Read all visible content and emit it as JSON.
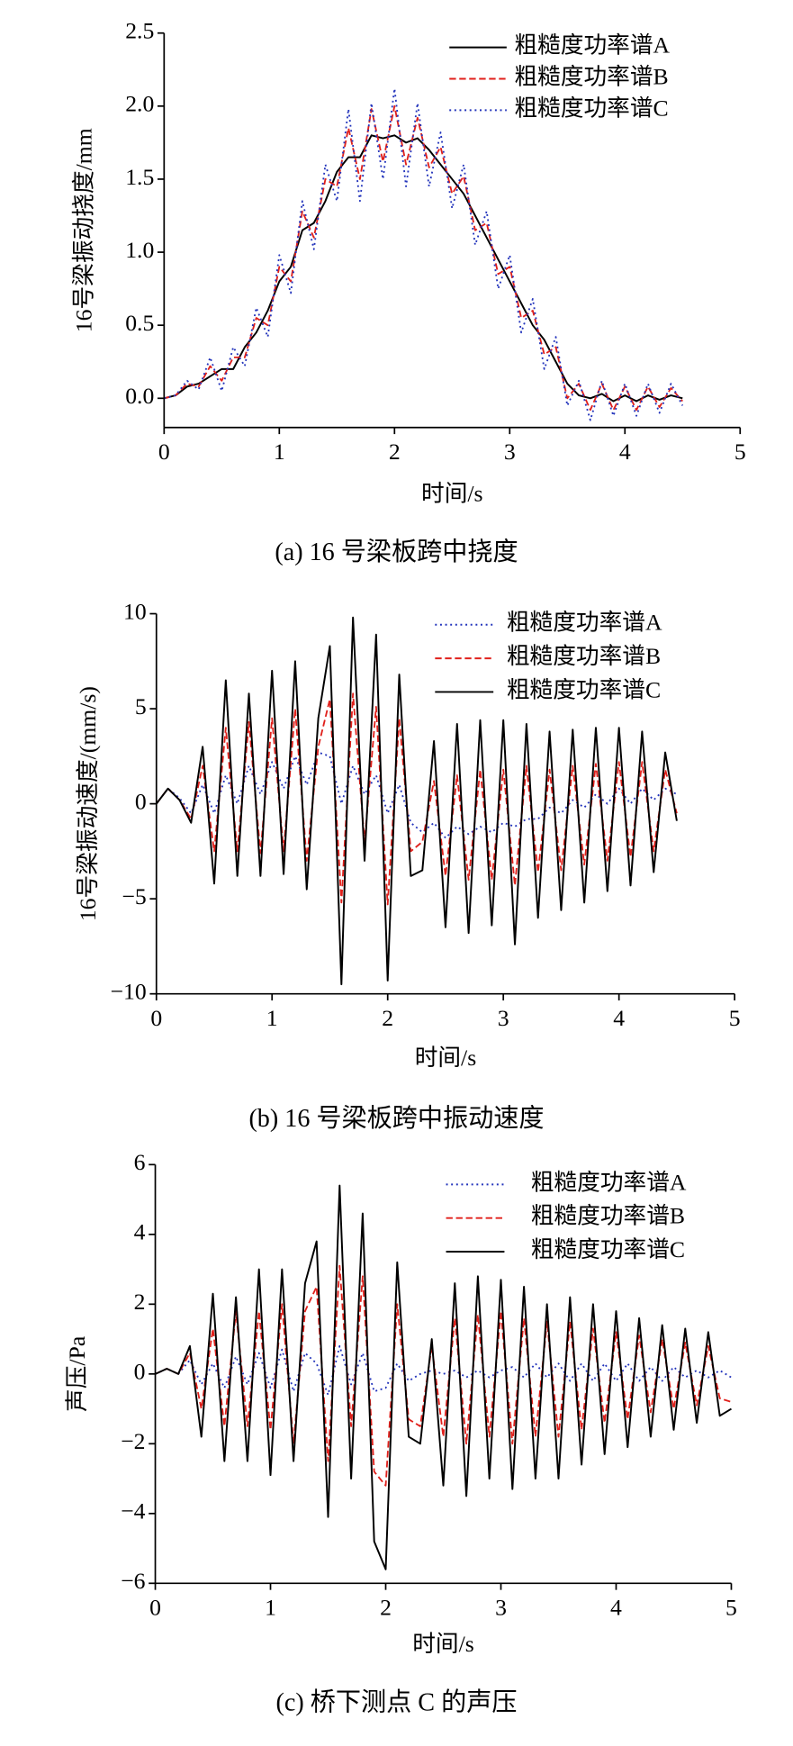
{
  "chart_data": [
    {
      "type": "line",
      "title": "(a) 16 号梁板跨中挠度",
      "x_label": "时间/s",
      "y_label": "16号梁振动挠度/mm",
      "x": [
        0,
        0.1,
        0.2,
        0.3,
        0.4,
        0.5,
        0.6,
        0.7,
        0.8,
        0.9,
        1,
        1.1,
        1.2,
        1.3,
        1.4,
        1.5,
        1.6,
        1.7,
        1.8,
        1.9,
        2,
        2.1,
        2.2,
        2.3,
        2.4,
        2.5,
        2.6,
        2.7,
        2.8,
        2.9,
        3,
        3.1,
        3.2,
        3.3,
        3.4,
        3.5,
        3.6,
        3.7,
        3.8,
        3.9,
        4,
        4.1,
        4.2,
        4.3,
        4.4,
        4.5
      ],
      "series": [
        {
          "name": "粗糙度功率谱A",
          "color": "#000000",
          "style": "solid",
          "values": [
            0,
            0.02,
            0.08,
            0.1,
            0.15,
            0.2,
            0.2,
            0.35,
            0.45,
            0.6,
            0.8,
            0.9,
            1.15,
            1.2,
            1.35,
            1.55,
            1.65,
            1.65,
            1.8,
            1.78,
            1.8,
            1.75,
            1.78,
            1.7,
            1.6,
            1.5,
            1.4,
            1.25,
            1.1,
            0.95,
            0.8,
            0.65,
            0.5,
            0.4,
            0.25,
            0.1,
            0.02,
            0,
            0.03,
            -0.02,
            0.02,
            -0.02,
            0.02,
            -0.01,
            0.02,
            0
          ]
        },
        {
          "name": "粗糙度功率谱B",
          "color": "#e0201b",
          "style": "dashed",
          "values": [
            0,
            0.02,
            0.1,
            0.08,
            0.22,
            0.12,
            0.28,
            0.28,
            0.55,
            0.5,
            0.9,
            0.8,
            1.28,
            1.1,
            1.5,
            1.45,
            1.85,
            1.5,
            1.98,
            1.62,
            2.0,
            1.6,
            1.92,
            1.58,
            1.72,
            1.4,
            1.52,
            1.15,
            1.2,
            0.85,
            0.9,
            0.55,
            0.6,
            0.3,
            0.35,
            0,
            0.1,
            -0.08,
            0.1,
            -0.08,
            0.08,
            -0.08,
            0.08,
            -0.06,
            0.07,
            -0.02
          ]
        },
        {
          "name": "粗糙度功率谱C",
          "color": "#2233bb",
          "style": "dotted",
          "values": [
            0,
            0.02,
            0.12,
            0.06,
            0.28,
            0.05,
            0.35,
            0.22,
            0.62,
            0.42,
            0.98,
            0.72,
            1.35,
            1.02,
            1.6,
            1.35,
            1.98,
            1.35,
            2.02,
            1.5,
            2.12,
            1.45,
            2.02,
            1.45,
            1.82,
            1.3,
            1.6,
            1.05,
            1.28,
            0.75,
            0.98,
            0.45,
            0.68,
            0.2,
            0.42,
            -0.05,
            0.12,
            -0.15,
            0.12,
            -0.12,
            0.1,
            -0.12,
            0.1,
            -0.1,
            0.1,
            -0.05
          ]
        }
      ],
      "xlim": [
        0,
        5
      ],
      "xticks": [
        0,
        1,
        2,
        3,
        4,
        5
      ],
      "ylim": [
        -0.2,
        2.5
      ],
      "yticks": [
        {
          "value": 0,
          "label": "0.0"
        },
        0.5,
        {
          "value": 1,
          "label": "1.0"
        },
        1.5,
        {
          "value": 2,
          "label": "2.0"
        },
        2.5
      ]
    },
    {
      "type": "line",
      "title": "(b) 16 号梁板跨中振动速度",
      "x_label": "时间/s",
      "y_label": "16号梁振动速度/(mm/s)",
      "x": [
        0,
        0.1,
        0.2,
        0.3,
        0.4,
        0.5,
        0.6,
        0.7,
        0.8,
        0.9,
        1,
        1.1,
        1.2,
        1.3,
        1.4,
        1.5,
        1.6,
        1.7,
        1.8,
        1.9,
        2,
        2.1,
        2.2,
        2.3,
        2.4,
        2.5,
        2.6,
        2.7,
        2.8,
        2.9,
        3,
        3.1,
        3.2,
        3.3,
        3.4,
        3.5,
        3.6,
        3.7,
        3.8,
        3.9,
        4,
        4.1,
        4.2,
        4.3,
        4.4,
        4.5
      ],
      "series": [
        {
          "name": "粗糙度功率谱A",
          "color": "#2233bb",
          "style": "dotted",
          "values": [
            0,
            0.8,
            0.3,
            -0.5,
            1,
            -0.5,
            1.5,
            0,
            2,
            0.5,
            2.2,
            0.8,
            2.5,
            1,
            2.7,
            2.5,
            0,
            2,
            0.5,
            1.5,
            -0.5,
            1,
            -1,
            -1.5,
            -1,
            -1.8,
            -1.2,
            -1.6,
            -1.2,
            -1.5,
            -1,
            -1.2,
            -0.8,
            -0.8,
            -0.2,
            -0.5,
            0.2,
            -0.2,
            0.5,
            0,
            0.8,
            0,
            0.8,
            0.2,
            0.8,
            0.5
          ]
        },
        {
          "name": "粗糙度功率谱B",
          "color": "#e0201b",
          "style": "dashed",
          "values": [
            0,
            0.8,
            0.2,
            -0.8,
            2,
            -2.5,
            4,
            -2.5,
            4.3,
            -2.6,
            4.5,
            -2.5,
            5,
            -3,
            3,
            5.5,
            -5.2,
            5.8,
            -2,
            5.1,
            -5.3,
            4.5,
            -2.5,
            -2,
            1.2,
            -3.8,
            1.5,
            -4,
            1.8,
            -4,
            1.8,
            -4.3,
            2,
            -3.6,
            1.8,
            -3.5,
            2,
            -3.2,
            2.1,
            -3,
            2.2,
            -2.8,
            2.2,
            -2.5,
            1.8,
            -0.5
          ]
        },
        {
          "name": "粗糙度功率谱C",
          "color": "#000000",
          "style": "solid",
          "values": [
            0,
            0.8,
            0.2,
            -1,
            3,
            -4.2,
            6.5,
            -3.8,
            5.8,
            -3.8,
            7.0,
            -3.7,
            7.5,
            -4.5,
            4.5,
            8.3,
            -9.5,
            9.8,
            -3,
            8.9,
            -9.3,
            6.8,
            -3.8,
            -3.5,
            3.3,
            -6.5,
            4.2,
            -6.8,
            4.4,
            -6.4,
            4.4,
            -7.4,
            4.2,
            -6.0,
            3.8,
            -5.6,
            3.9,
            -5.2,
            4.0,
            -4.6,
            4.0,
            -4.3,
            3.8,
            -3.6,
            2.7,
            -0.9
          ]
        }
      ],
      "xlim": [
        0,
        5
      ],
      "xticks": [
        0,
        1,
        2,
        3,
        4,
        5
      ],
      "ylim": [
        -10,
        10
      ],
      "yticks": [
        {
          "value": -10,
          "label": "−10"
        },
        {
          "value": -5,
          "label": "−5"
        },
        0,
        5,
        10
      ]
    },
    {
      "type": "line",
      "title": "(c)  桥下测点 C 的声压",
      "x_label": "时间/s",
      "y_label": "声压/Pa",
      "x": [
        0,
        0.1,
        0.2,
        0.3,
        0.4,
        0.5,
        0.6,
        0.7,
        0.8,
        0.9,
        1,
        1.1,
        1.2,
        1.3,
        1.4,
        1.5,
        1.6,
        1.7,
        1.8,
        1.9,
        2,
        2.1,
        2.2,
        2.3,
        2.4,
        2.5,
        2.6,
        2.7,
        2.8,
        2.9,
        3,
        3.1,
        3.2,
        3.3,
        3.4,
        3.5,
        3.6,
        3.7,
        3.8,
        3.9,
        4,
        4.1,
        4.2,
        4.3,
        4.4,
        4.5,
        4.6,
        4.7,
        4.8,
        4.9,
        5
      ],
      "series": [
        {
          "name": "粗糙度功率谱A",
          "color": "#2233bb",
          "style": "dotted",
          "values": [
            0,
            0.15,
            0,
            0.4,
            -0.3,
            0.3,
            -0.4,
            0.5,
            -0.3,
            0.6,
            -0.4,
            0.7,
            -0.5,
            0.6,
            0.3,
            -0.6,
            0.8,
            -0.3,
            0.6,
            -0.5,
            -0.4,
            0.3,
            -0.2,
            0,
            0.1,
            0,
            0.1,
            -0.1,
            0.1,
            -0.1,
            0.1,
            0.2,
            -0.1,
            0.3,
            -0.1,
            0.3,
            -0.2,
            0.3,
            -0.2,
            0.3,
            -0.2,
            0.3,
            -0.2,
            0.2,
            -0.2,
            0.2,
            -0.1,
            0.1,
            -0.1,
            0.1,
            -0.1
          ]
        },
        {
          "name": "粗糙度功率谱B",
          "color": "#e0201b",
          "style": "dashed",
          "values": [
            0,
            0.15,
            0,
            0.6,
            -1,
            1.3,
            -1.5,
            1.8,
            -1.5,
            1.8,
            -1.6,
            2,
            -2,
            1.8,
            2.5,
            -2.5,
            3.1,
            -1.5,
            2.8,
            -2.8,
            -3.2,
            2,
            -1.3,
            -1.5,
            0.8,
            -1.8,
            1.6,
            -2,
            1.7,
            -1.8,
            1.8,
            -2,
            1.6,
            -1.8,
            1.5,
            -1.8,
            1.5,
            -1.6,
            1.3,
            -1.4,
            1.2,
            -1.3,
            1.1,
            -1.1,
            1,
            -1,
            0.9,
            -0.9,
            0.8,
            -0.7,
            -0.8
          ]
        },
        {
          "name": "粗糙度功率谱C",
          "color": "#000000",
          "style": "solid",
          "values": [
            0,
            0.15,
            0,
            0.8,
            -1.8,
            2.3,
            -2.5,
            2.2,
            -2.5,
            3,
            -2.9,
            3,
            -2.5,
            2.6,
            3.8,
            -4.1,
            5.4,
            -3,
            4.6,
            -4.8,
            -5.6,
            3.2,
            -1.8,
            -2,
            1,
            -3.2,
            2.6,
            -3.5,
            2.8,
            -3,
            2.7,
            -3.3,
            2.5,
            -3,
            2,
            -3,
            2.2,
            -2.6,
            2,
            -2.3,
            1.8,
            -2.1,
            1.6,
            -1.8,
            1.4,
            -1.6,
            1.3,
            -1.4,
            1.2,
            -1.2,
            -1.0
          ]
        }
      ],
      "xlim": [
        0,
        5
      ],
      "xticks": [
        0,
        1,
        2,
        3,
        4,
        5
      ],
      "ylim": [
        -6,
        6
      ],
      "yticks": [
        {
          "value": -6,
          "label": "−6"
        },
        {
          "value": -4,
          "label": "−4"
        },
        {
          "value": -2,
          "label": "−2"
        },
        0,
        2,
        4,
        6
      ]
    }
  ]
}
